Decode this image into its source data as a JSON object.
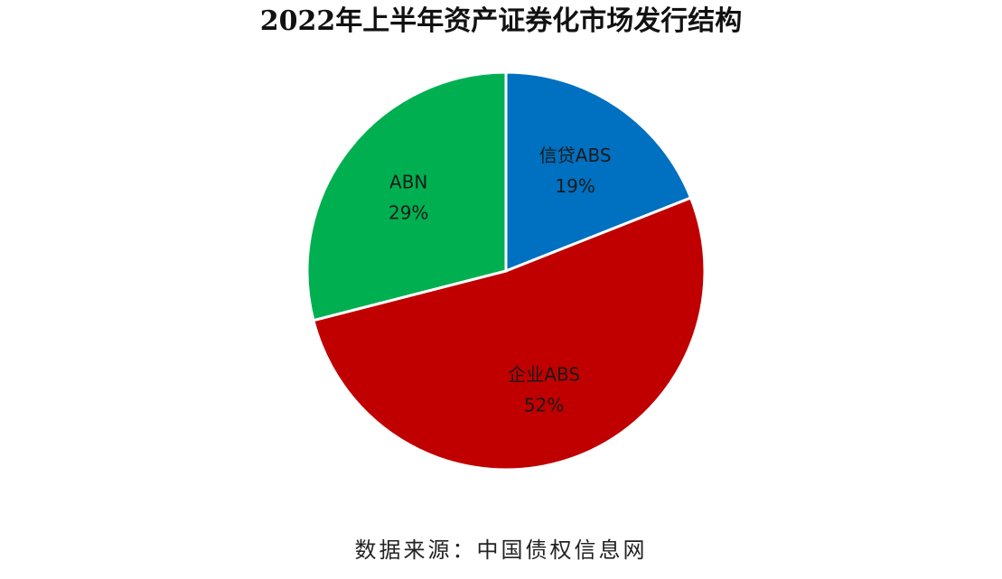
{
  "chart_data": {
    "type": "pie",
    "title": "2022年上半年资产证券化市场发行结构",
    "slices": [
      {
        "label": "信贷ABS",
        "value": 19,
        "value_label": "19%",
        "color": "#0070C0"
      },
      {
        "label": "企业ABS",
        "value": 52,
        "value_label": "52%",
        "color": "#C00000"
      },
      {
        "label": "ABN",
        "value": 29,
        "value_label": "29%",
        "color": "#00B050"
      }
    ],
    "start_angle": "12 o'clock",
    "direction": "clockwise",
    "legend": "none"
  },
  "source": "数据来源：中国债权信息网"
}
